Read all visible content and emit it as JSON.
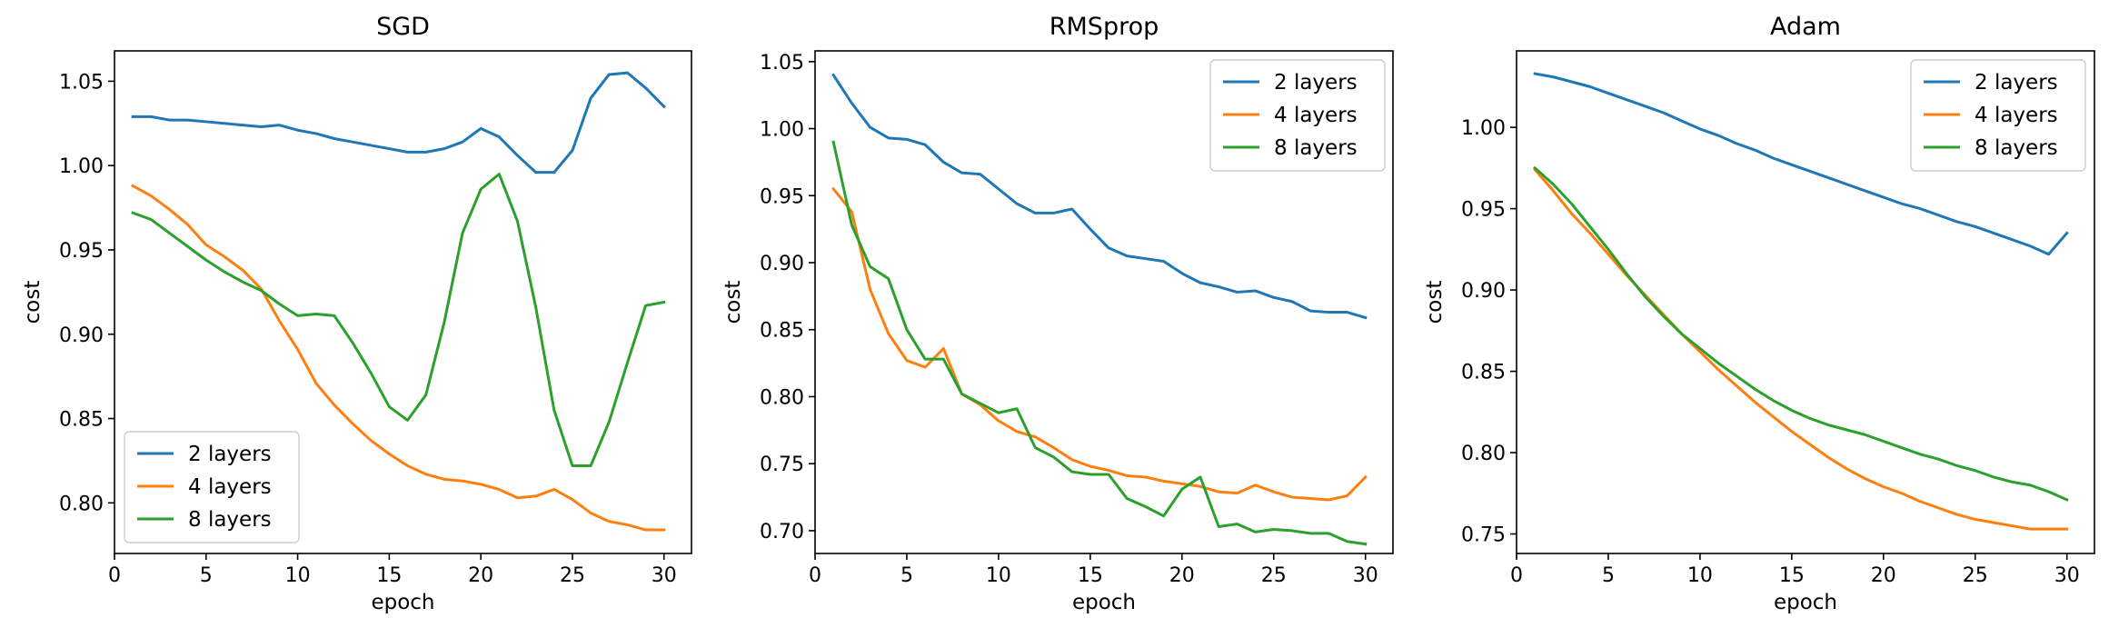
{
  "chart_data": [
    {
      "type": "line",
      "title": "SGD",
      "xlabel": "epoch",
      "ylabel": "cost",
      "xlim": [
        0,
        31.5
      ],
      "ylim": [
        0.77,
        1.068
      ],
      "xticks": [
        0,
        5,
        10,
        15,
        20,
        25,
        30
      ],
      "yticks": [
        0.8,
        0.85,
        0.9,
        0.95,
        1.0,
        1.05
      ],
      "ytick_labels": [
        "0.80",
        "0.85",
        "0.90",
        "0.95",
        "1.00",
        "1.05"
      ],
      "legend_position": "lower-left",
      "x": [
        1,
        2,
        3,
        4,
        5,
        6,
        7,
        8,
        9,
        10,
        11,
        12,
        13,
        14,
        15,
        16,
        17,
        18,
        19,
        20,
        21,
        22,
        23,
        24,
        25,
        26,
        27,
        28,
        29,
        30
      ],
      "series": [
        {
          "name": "2 layers",
          "color": "#1f77b4",
          "values": [
            1.029,
            1.029,
            1.027,
            1.027,
            1.026,
            1.025,
            1.024,
            1.023,
            1.024,
            1.021,
            1.019,
            1.016,
            1.014,
            1.012,
            1.01,
            1.008,
            1.008,
            1.01,
            1.014,
            1.022,
            1.017,
            1.006,
            0.996,
            0.996,
            1.009,
            1.04,
            1.054,
            1.055,
            1.046,
            1.035
          ]
        },
        {
          "name": "4 layers",
          "color": "#ff7f0e",
          "values": [
            0.988,
            0.982,
            0.974,
            0.965,
            0.953,
            0.946,
            0.938,
            0.927,
            0.908,
            0.891,
            0.871,
            0.858,
            0.847,
            0.837,
            0.829,
            0.822,
            0.817,
            0.814,
            0.813,
            0.811,
            0.808,
            0.803,
            0.804,
            0.808,
            0.802,
            0.794,
            0.789,
            0.787,
            0.784,
            0.784
          ]
        },
        {
          "name": "8 layers",
          "color": "#2ca02c",
          "values": [
            0.972,
            0.968,
            0.96,
            0.952,
            0.944,
            0.937,
            0.931,
            0.926,
            0.918,
            0.911,
            0.912,
            0.911,
            0.895,
            0.877,
            0.857,
            0.849,
            0.864,
            0.907,
            0.96,
            0.986,
            0.995,
            0.967,
            0.916,
            0.855,
            0.822,
            0.822,
            0.848,
            0.883,
            0.917,
            0.919
          ]
        }
      ]
    },
    {
      "type": "line",
      "title": "RMSprop",
      "xlabel": "epoch",
      "ylabel": "cost",
      "xlim": [
        0,
        31.5
      ],
      "ylim": [
        0.683,
        1.058
      ],
      "xticks": [
        0,
        5,
        10,
        15,
        20,
        25,
        30
      ],
      "yticks": [
        0.7,
        0.75,
        0.8,
        0.85,
        0.9,
        0.95,
        1.0,
        1.05
      ],
      "ytick_labels": [
        "0.70",
        "0.75",
        "0.80",
        "0.85",
        "0.90",
        "0.95",
        "1.00",
        "1.05"
      ],
      "legend_position": "upper-right",
      "x": [
        1,
        2,
        3,
        4,
        5,
        6,
        7,
        8,
        9,
        10,
        11,
        12,
        13,
        14,
        15,
        16,
        17,
        18,
        19,
        20,
        21,
        22,
        23,
        24,
        25,
        26,
        27,
        28,
        29,
        30
      ],
      "series": [
        {
          "name": "2 layers",
          "color": "#1f77b4",
          "values": [
            1.04,
            1.019,
            1.001,
            0.993,
            0.992,
            0.988,
            0.975,
            0.967,
            0.966,
            0.955,
            0.944,
            0.937,
            0.937,
            0.94,
            0.925,
            0.911,
            0.905,
            0.903,
            0.901,
            0.892,
            0.885,
            0.882,
            0.878,
            0.879,
            0.874,
            0.871,
            0.864,
            0.863,
            0.863,
            0.859
          ]
        },
        {
          "name": "4 layers",
          "color": "#ff7f0e",
          "values": [
            0.955,
            0.938,
            0.88,
            0.847,
            0.827,
            0.822,
            0.836,
            0.802,
            0.794,
            0.782,
            0.774,
            0.77,
            0.762,
            0.753,
            0.748,
            0.745,
            0.741,
            0.74,
            0.737,
            0.735,
            0.733,
            0.729,
            0.728,
            0.734,
            0.729,
            0.725,
            0.724,
            0.723,
            0.726,
            0.74
          ]
        },
        {
          "name": "8 layers",
          "color": "#2ca02c",
          "values": [
            0.99,
            0.928,
            0.897,
            0.888,
            0.85,
            0.828,
            0.828,
            0.802,
            0.795,
            0.788,
            0.791,
            0.762,
            0.755,
            0.744,
            0.742,
            0.742,
            0.724,
            0.718,
            0.711,
            0.731,
            0.74,
            0.703,
            0.705,
            0.699,
            0.701,
            0.7,
            0.698,
            0.698,
            0.692,
            0.69
          ]
        }
      ]
    },
    {
      "type": "line",
      "title": "Adam",
      "xlabel": "epoch",
      "ylabel": "cost",
      "xlim": [
        0,
        31.5
      ],
      "ylim": [
        0.738,
        1.047
      ],
      "xticks": [
        0,
        5,
        10,
        15,
        20,
        25,
        30
      ],
      "yticks": [
        0.75,
        0.8,
        0.85,
        0.9,
        0.95,
        1.0
      ],
      "ytick_labels": [
        "0.75",
        "0.80",
        "0.85",
        "0.90",
        "0.95",
        "1.00"
      ],
      "legend_position": "upper-right",
      "x": [
        1,
        2,
        3,
        4,
        5,
        6,
        7,
        8,
        9,
        10,
        11,
        12,
        13,
        14,
        15,
        16,
        17,
        18,
        19,
        20,
        21,
        22,
        23,
        24,
        25,
        26,
        27,
        28,
        29,
        30
      ],
      "series": [
        {
          "name": "2 layers",
          "color": "#1f77b4",
          "values": [
            1.033,
            1.031,
            1.028,
            1.025,
            1.021,
            1.017,
            1.013,
            1.009,
            1.004,
            0.999,
            0.995,
            0.99,
            0.986,
            0.981,
            0.977,
            0.973,
            0.969,
            0.965,
            0.961,
            0.957,
            0.953,
            0.95,
            0.946,
            0.942,
            0.939,
            0.935,
            0.931,
            0.927,
            0.922,
            0.935
          ]
        },
        {
          "name": "4 layers",
          "color": "#ff7f0e",
          "values": [
            0.974,
            0.961,
            0.947,
            0.935,
            0.922,
            0.909,
            0.897,
            0.885,
            0.873,
            0.862,
            0.851,
            0.841,
            0.831,
            0.822,
            0.813,
            0.805,
            0.797,
            0.79,
            0.784,
            0.779,
            0.775,
            0.77,
            0.766,
            0.762,
            0.759,
            0.757,
            0.755,
            0.753,
            0.753,
            0.753
          ]
        },
        {
          "name": "8 layers",
          "color": "#2ca02c",
          "values": [
            0.975,
            0.965,
            0.953,
            0.939,
            0.925,
            0.91,
            0.896,
            0.884,
            0.873,
            0.864,
            0.855,
            0.847,
            0.839,
            0.832,
            0.826,
            0.821,
            0.817,
            0.814,
            0.811,
            0.807,
            0.803,
            0.799,
            0.796,
            0.792,
            0.789,
            0.785,
            0.782,
            0.78,
            0.776,
            0.771
          ]
        }
      ]
    }
  ]
}
